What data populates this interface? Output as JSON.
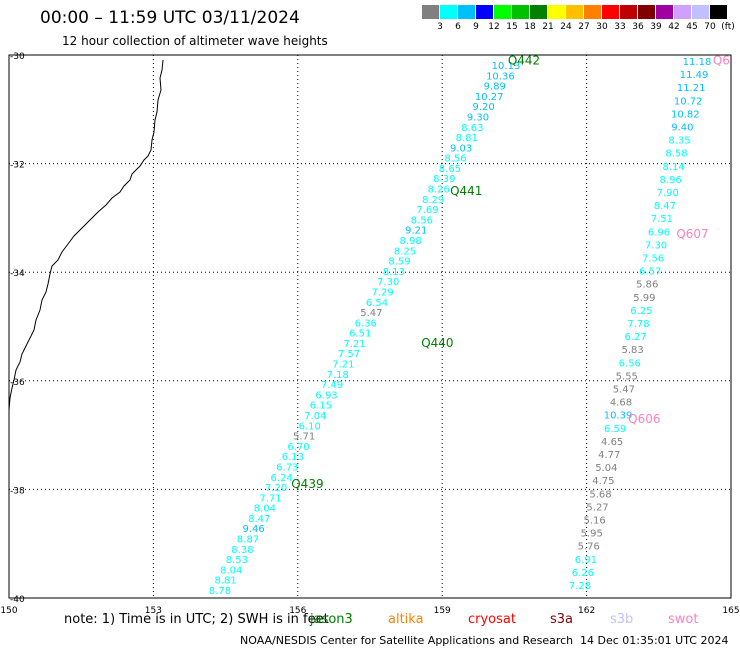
{
  "header": {
    "title": "00:00 – 11:59 UTC 03/11/2024",
    "subtitle": "12 hour collection of altimeter wave heights"
  },
  "legend": {
    "colors": [
      "#808080",
      "#00ffff",
      "#00bfff",
      "#0000ff",
      "#00ff00",
      "#00c000",
      "#008000",
      "#ffff00",
      "#ffc000",
      "#ff8000",
      "#ff0000",
      "#c00000",
      "#800000",
      "#a000a0",
      "#d0a0ff",
      "#c0c0ff",
      "#000000"
    ],
    "labels": [
      "3",
      "6",
      "9",
      "12",
      "15",
      "18",
      "21",
      "24",
      "27",
      "30",
      "33",
      "36",
      "39",
      "42",
      "45",
      "70",
      "(ft)"
    ]
  },
  "map": {
    "lon_ticks": [
      "150",
      "153",
      "156",
      "159",
      "162",
      "165"
    ],
    "lat_ticks": [
      "-30",
      "-32",
      "-34",
      "-36",
      "-38",
      "-40"
    ],
    "track_labels": [
      {
        "text": "Q442",
        "lon": 160.7,
        "lat": -30.1,
        "color": "#008000"
      },
      {
        "text": "Q441",
        "lon": 159.5,
        "lat": -32.5,
        "color": "#008000"
      },
      {
        "text": "Q440",
        "lon": 158.9,
        "lat": -35.3,
        "color": "#008000"
      },
      {
        "text": "Q439",
        "lon": 156.2,
        "lat": -37.9,
        "color": "#008000"
      },
      {
        "text": "Q607",
        "lon": 164.2,
        "lat": -33.3,
        "color": "#ff80c0"
      },
      {
        "text": "Q606",
        "lon": 163.2,
        "lat": -36.7,
        "color": "#ff80c0"
      },
      {
        "text": "Q6",
        "lon": 164.8,
        "lat": -30.1,
        "color": "#ff80c0"
      }
    ],
    "track_a": [
      "10.13",
      "10.36",
      "9.89",
      "10.27",
      "9.20",
      "9.30",
      "8.63",
      "8.81",
      "9.03",
      "8.56",
      "8.65",
      "8.39",
      "8.26",
      "8.29",
      "7.69",
      "8.56",
      "9.21",
      "8.98",
      "8.25",
      "8.59",
      "8.13",
      "7.30",
      "7.29",
      "6.54",
      "5.47",
      "6.36",
      "6.51",
      "7.21",
      "7.57",
      "7.21",
      "7.18",
      "7.49",
      "6.93",
      "6.15",
      "7.04",
      "6.10",
      "5.71",
      "6.70",
      "6.13",
      "6.73",
      "6.24",
      "7.20",
      "7.71",
      "8.04",
      "8.47",
      "9.46",
      "8.87",
      "8.38",
      "8.53",
      "8.04",
      "8.81",
      "8.78"
    ],
    "track_b": [
      "11.18",
      "11.49",
      "11.21",
      "10.72",
      "10.82",
      "9.40",
      "8.35",
      "8.58",
      "8.14",
      "8.96",
      "7.90",
      "8.47",
      "7.51",
      "6.96",
      "7.30",
      "7.56",
      "6.57",
      "5.86",
      "5.99",
      "6.25",
      "7.78",
      "6.27",
      "5.83",
      "6.56",
      "5.55",
      "5.47",
      "4.68",
      "10.39",
      "6.59",
      "4.65",
      "4.77",
      "5.04",
      "4.75",
      "5.68",
      "5.27",
      "5.16",
      "5.95",
      "5.76",
      "6.91",
      "6.26",
      "7.28"
    ]
  },
  "footer": {
    "note": "note: 1) Time is in UTC; 2) SWH is in feet",
    "satellites": [
      {
        "name": "jason3",
        "color": "#008000"
      },
      {
        "name": "altika",
        "color": "#ff8000"
      },
      {
        "name": "cryosat",
        "color": "#ff0000"
      },
      {
        "name": "s3a",
        "color": "#800000"
      },
      {
        "name": "s3b",
        "color": "#c0c0ff"
      },
      {
        "name": "swot",
        "color": "#ff80c0"
      }
    ],
    "credit": "NOAA/NESDIS Center for Satellite Applications and Research",
    "timestamp": "14 Dec 01:35:01 UTC 2024"
  }
}
